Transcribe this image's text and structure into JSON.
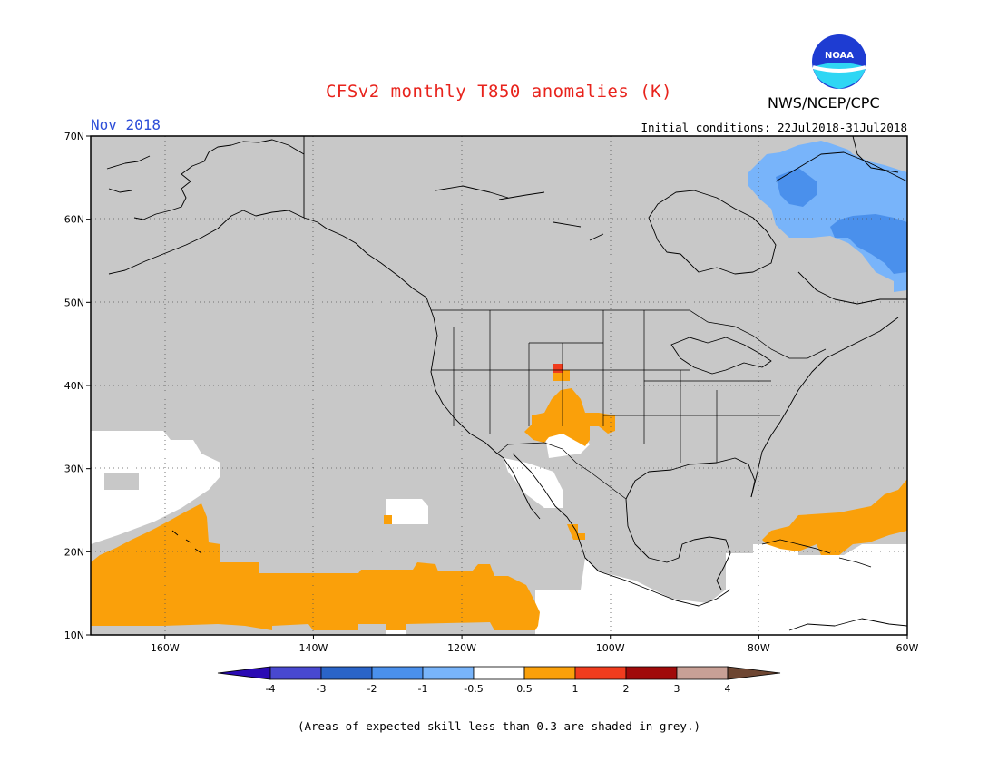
{
  "title": "CFSv2 monthly T850 anomalies (K)",
  "agency": "NWS/NCEP/CPC",
  "logo_text": "NOAA",
  "valid_month": "Nov 2018",
  "initial_conditions": "Initial conditions: 22Jul2018-31Jul2018",
  "footnote": "(Areas of expected skill less than 0.3 are shaded in grey.)",
  "map": {
    "lon_range": [
      -170,
      -60
    ],
    "lat_range": [
      10,
      70
    ],
    "lat_ticks": [
      {
        "value": 70,
        "label": "70N"
      },
      {
        "value": 60,
        "label": "60N"
      },
      {
        "value": 50,
        "label": "50N"
      },
      {
        "value": 40,
        "label": "40N"
      },
      {
        "value": 30,
        "label": "30N"
      },
      {
        "value": 20,
        "label": "20N"
      },
      {
        "value": 10,
        "label": "10N"
      }
    ],
    "lon_ticks": [
      {
        "value": -160,
        "label": "160W"
      },
      {
        "value": -140,
        "label": "140W"
      },
      {
        "value": -120,
        "label": "120W"
      },
      {
        "value": -100,
        "label": "100W"
      },
      {
        "value": -80,
        "label": "80W"
      },
      {
        "value": -60,
        "label": "60W"
      }
    ],
    "colors": {
      "low_skill_grey": "#c8c8c8",
      "near_zero_white": "#ffffff",
      "warm_0.5_1": "#faa00a",
      "warm_1_2": "#f03c1e",
      "cool_-0.5_-1": "#78b4fa",
      "cool_-1_-2": "#4a90ec",
      "coastline": "#000000"
    },
    "regions": [
      {
        "name": "low-skill area",
        "category": "grey"
      },
      {
        "name": "near-normal ocean pacific",
        "category": "white"
      },
      {
        "name": "warm anomaly pacific",
        "category": "0.5 to 1"
      },
      {
        "name": "warm anomaly southwest us",
        "category": "0.5 to 1"
      },
      {
        "name": "warm spot colorado",
        "category": "1 to 2"
      },
      {
        "name": "cool anomaly labrador",
        "category": "-0.5 to -1"
      },
      {
        "name": "cool anomaly labrador core",
        "category": "-1 to -2"
      },
      {
        "name": "warm anomaly caribbean",
        "category": "0.5 to 1"
      }
    ]
  },
  "colorbar": {
    "tick_labels": [
      "-4",
      "-3",
      "-2",
      "-1",
      "-0.5",
      "0.5",
      "1",
      "2",
      "3",
      "4"
    ],
    "colors": [
      "#2a0ab4",
      "#4848d0",
      "#2a64c8",
      "#4a90ec",
      "#78b4fa",
      "#ffffff",
      "#faa00a",
      "#f03c1e",
      "#a00a0a",
      "#c8a096",
      "#6e4632"
    ]
  }
}
